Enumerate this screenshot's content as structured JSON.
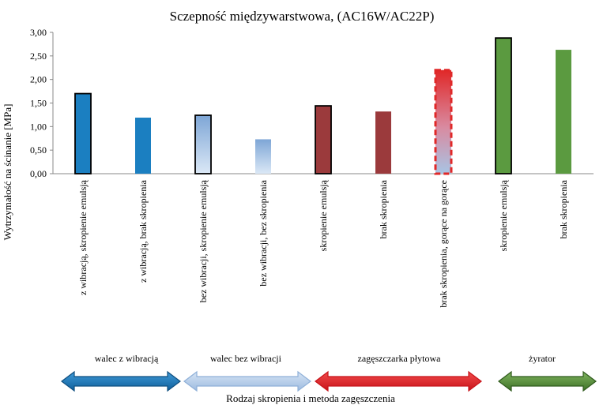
{
  "chart_data": {
    "type": "bar",
    "title": "Sczepność międzywarstwowa, (AC16W/AC22P)",
    "xlabel": "Rodzaj skropienia i metoda zagęszczenia",
    "ylabel": "Wytrzymałość na ścinanie [MPa]",
    "ylim": [
      0,
      3
    ],
    "yticks": [
      "0,00",
      "0,50",
      "1,00",
      "1,50",
      "2,00",
      "2,50",
      "3,00"
    ],
    "grid": false,
    "categories": [
      "z wibracją, skropienie emulsją",
      "z wibracją, brak skropienia",
      "bez wibracji, skropienie emulsją",
      "bez wibracji, bez skropienia",
      "skropienie emulsją",
      "brak skropienia",
      "brak skropienia, gorące na gorące",
      "skropienie emulsją",
      "brak skropienia"
    ],
    "values": [
      1.7,
      1.19,
      1.24,
      0.73,
      1.44,
      1.32,
      2.2,
      2.88,
      2.63
    ],
    "bar_fill": [
      "blue",
      "blue",
      "lightblue-gradient",
      "lightblue-gradient",
      "darkred",
      "darkred",
      "red-gradient",
      "green",
      "green"
    ],
    "bar_outlined": [
      true,
      false,
      true,
      false,
      true,
      false,
      true,
      true,
      false
    ],
    "groups": [
      {
        "label": "walec z wibracją",
        "color": "#1f77b4"
      },
      {
        "label": "walec bez wibracji",
        "color": "#a9c6e8"
      },
      {
        "label": "zagęszczarka płytowa",
        "color": "#e8262b"
      },
      {
        "label": "żyrator",
        "color": "#5a8f3a"
      }
    ],
    "colors": {
      "blue": "#1b7fc1",
      "lightblue_top": "#7ea6d6",
      "lightblue_bottom": "#dbe8f6",
      "darkred": "#9b3a3c",
      "red_top": "#e02828",
      "red_bottom": "#f0c4c4",
      "green": "#5b9a40"
    }
  }
}
